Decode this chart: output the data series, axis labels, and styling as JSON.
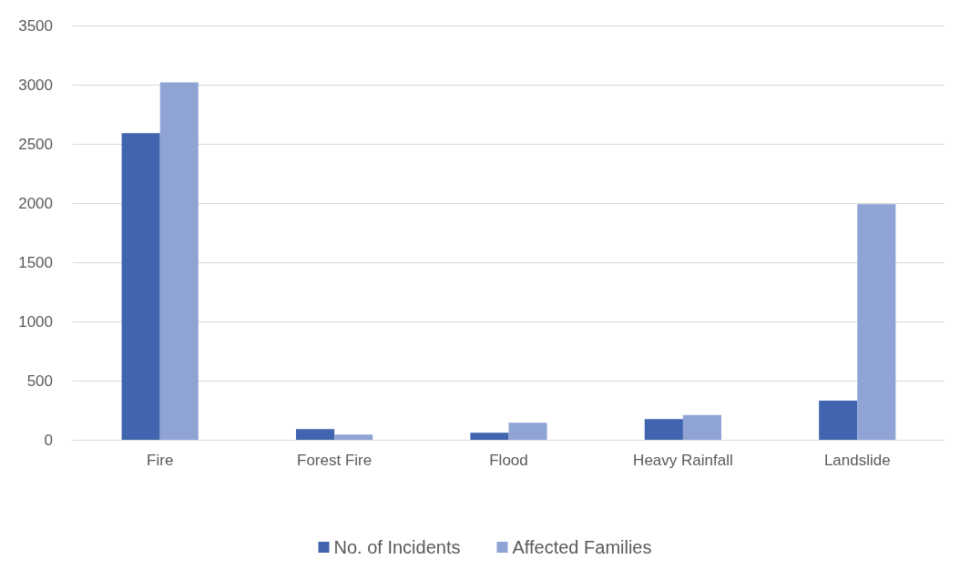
{
  "chart_data": {
    "type": "bar",
    "categories": [
      "Fire",
      "Forest Fire",
      "Flood",
      "Heavy Rainfall",
      "Landslide"
    ],
    "series": [
      {
        "name": "No. of Incidents",
        "color": "#4064ae",
        "values": [
          2590,
          90,
          60,
          175,
          330
        ]
      },
      {
        "name": "Affected Families",
        "color": "#8fa4d5",
        "values": [
          3020,
          45,
          145,
          210,
          1990
        ]
      }
    ],
    "ylim": [
      0,
      3500
    ],
    "yticks": [
      0,
      500,
      1000,
      1500,
      2000,
      2500,
      3000,
      3500
    ],
    "grid": "y",
    "legend": "bottom"
  }
}
